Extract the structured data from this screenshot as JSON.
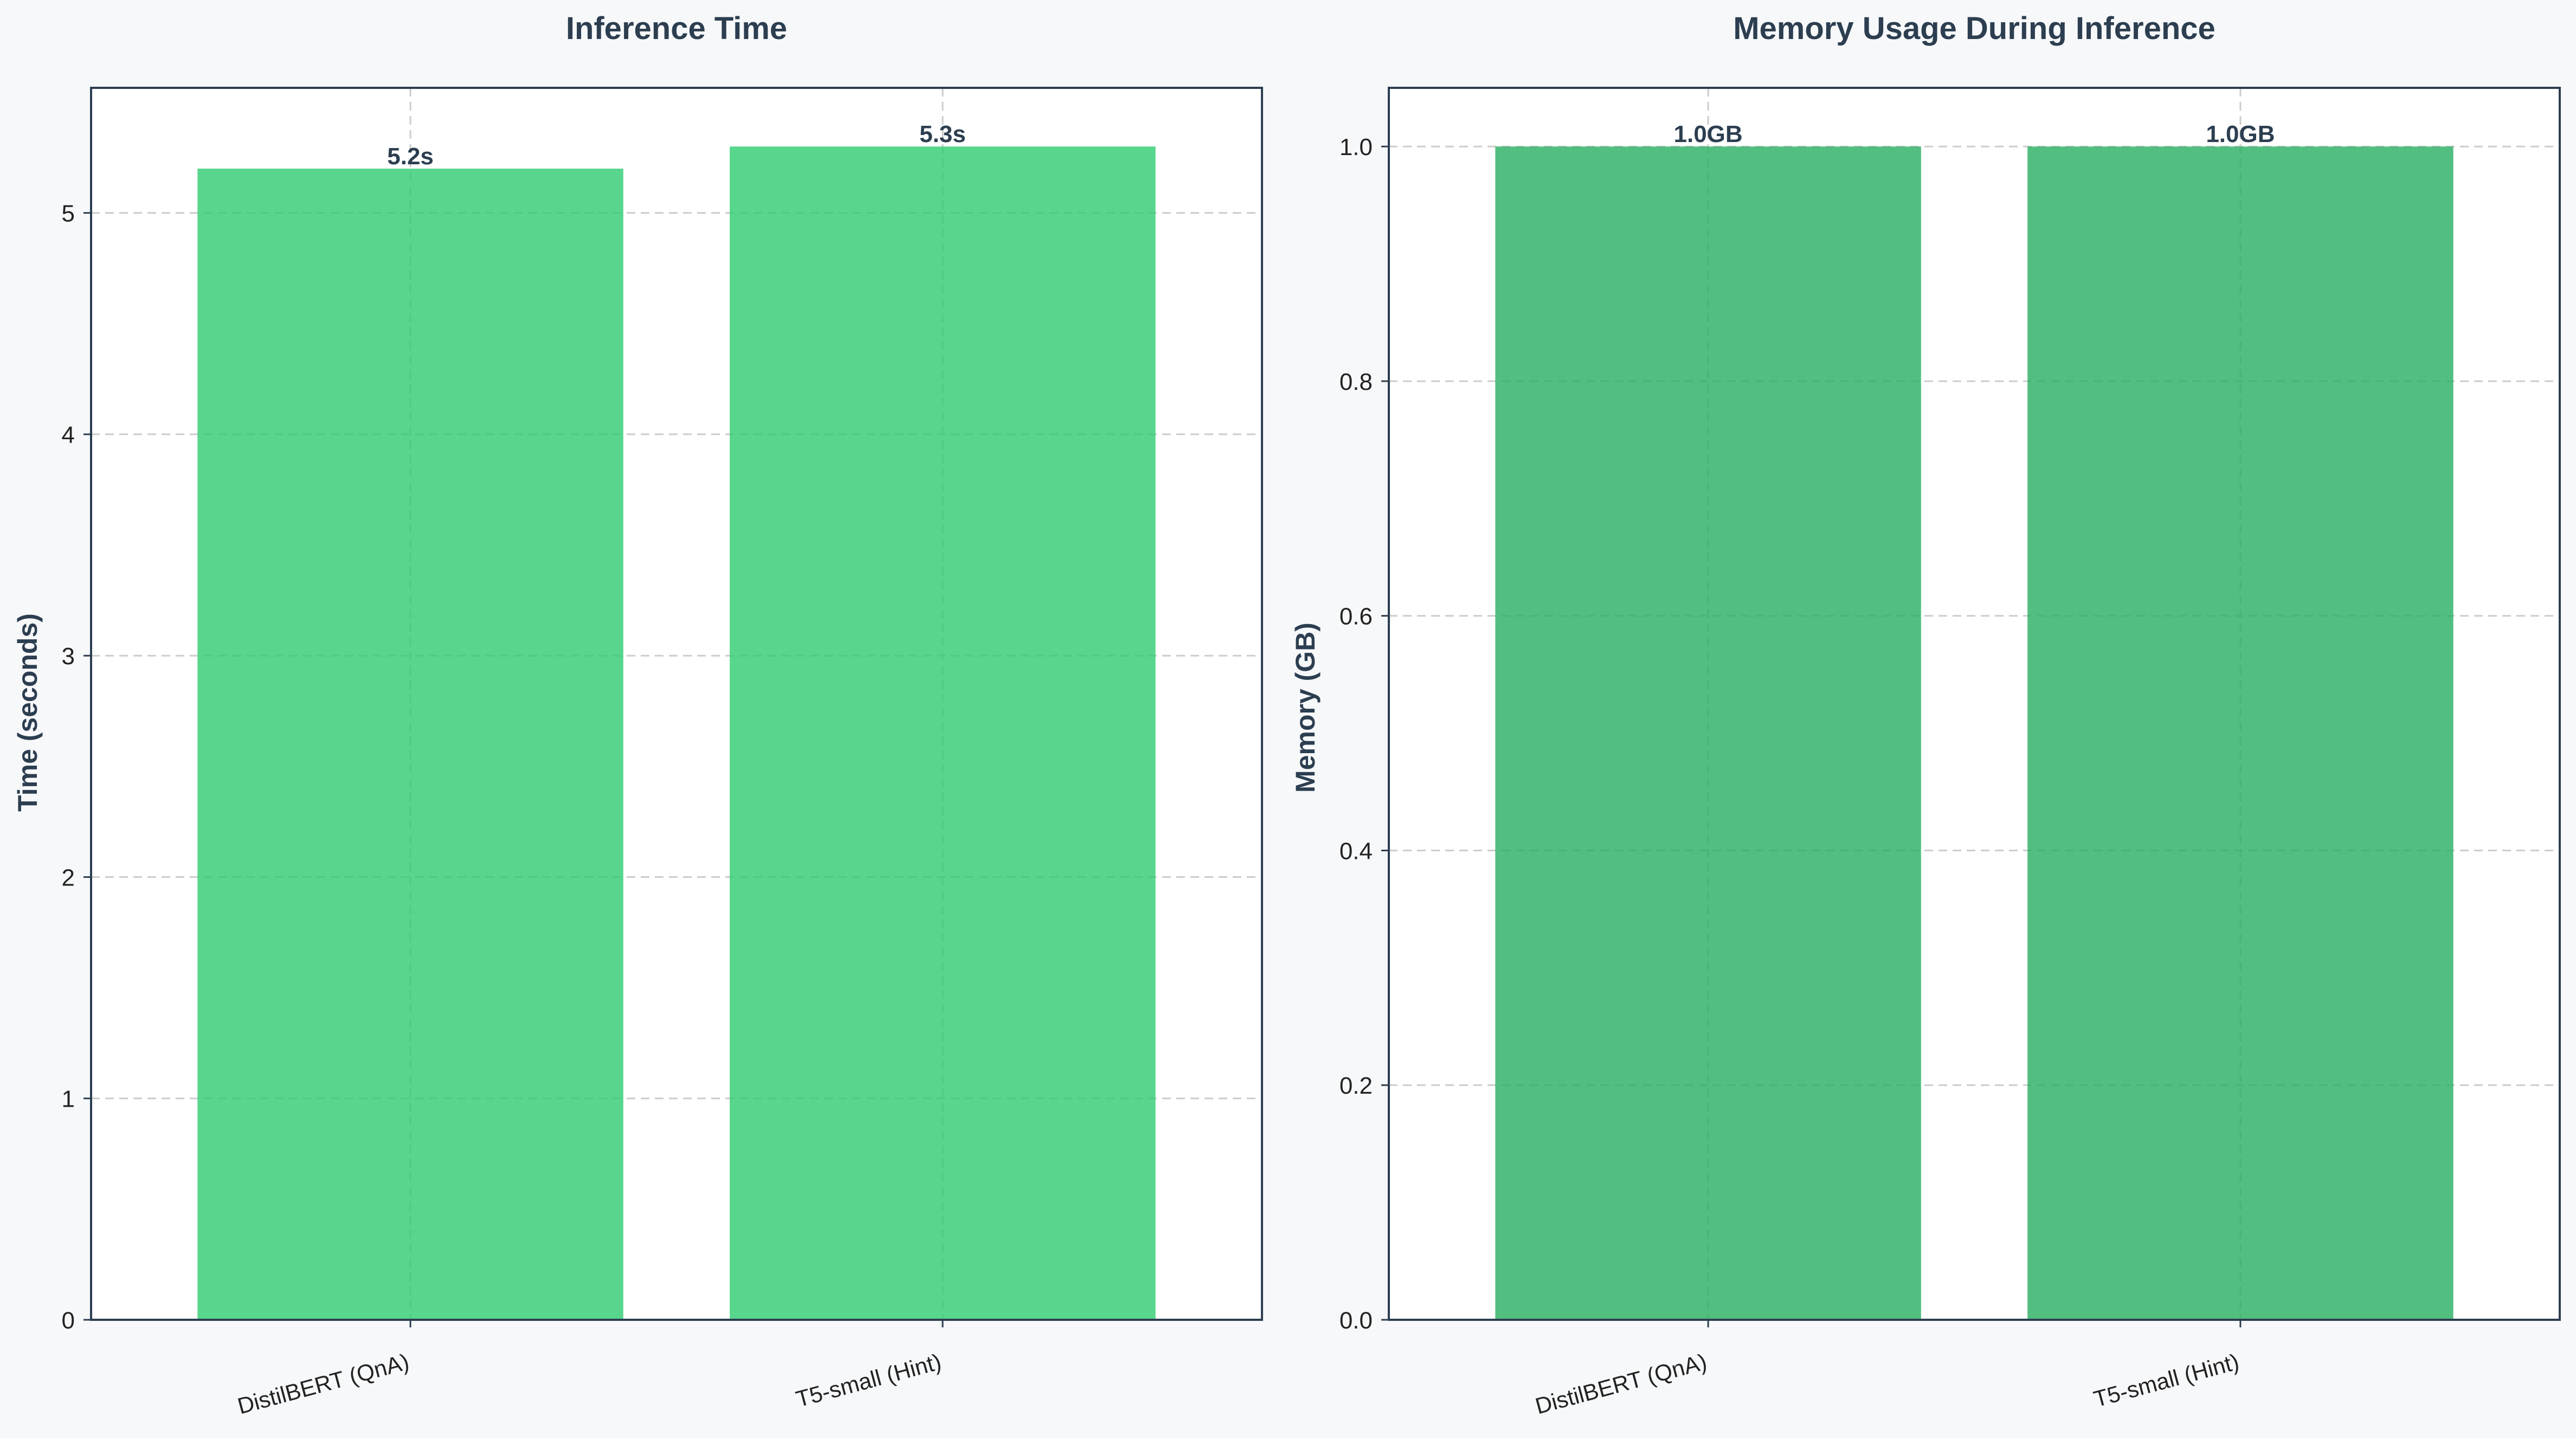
{
  "chart_data": [
    {
      "type": "bar",
      "title": "Inference Time",
      "xlabel": "",
      "ylabel": "Time (seconds)",
      "categories": [
        "DistilBERT (QnA)",
        "T5-small (Hint)"
      ],
      "values": [
        5.2,
        5.3
      ],
      "value_labels": [
        "5.2s",
        "5.3s"
      ],
      "ylim": [
        0,
        5.565
      ],
      "yticks": [
        0,
        1,
        2,
        3,
        4,
        5
      ],
      "ytick_labels": [
        "0",
        "1",
        "2",
        "3",
        "4",
        "5"
      ],
      "bar_color": "#2ecc71",
      "grid": true
    },
    {
      "type": "bar",
      "title": "Memory Usage During Inference",
      "xlabel": "",
      "ylabel": "Memory (GB)",
      "categories": [
        "DistilBERT (QnA)",
        "T5-small (Hint)"
      ],
      "values": [
        1.0,
        1.0
      ],
      "value_labels": [
        "1.0GB",
        "1.0GB"
      ],
      "ylim": [
        0,
        1.05
      ],
      "yticks": [
        0.0,
        0.2,
        0.4,
        0.6,
        0.8,
        1.0
      ],
      "ytick_labels": [
        "0.0",
        "0.2",
        "0.4",
        "0.6",
        "0.8",
        "1.0"
      ],
      "bar_color": "#27ae60",
      "grid": true
    }
  ],
  "colors": {
    "figure_background": "#f7f8fa",
    "axes_background": "#ffffff",
    "text_dark": "#2c3e50",
    "tick_text": "#222222",
    "grid": "#cccccc"
  }
}
